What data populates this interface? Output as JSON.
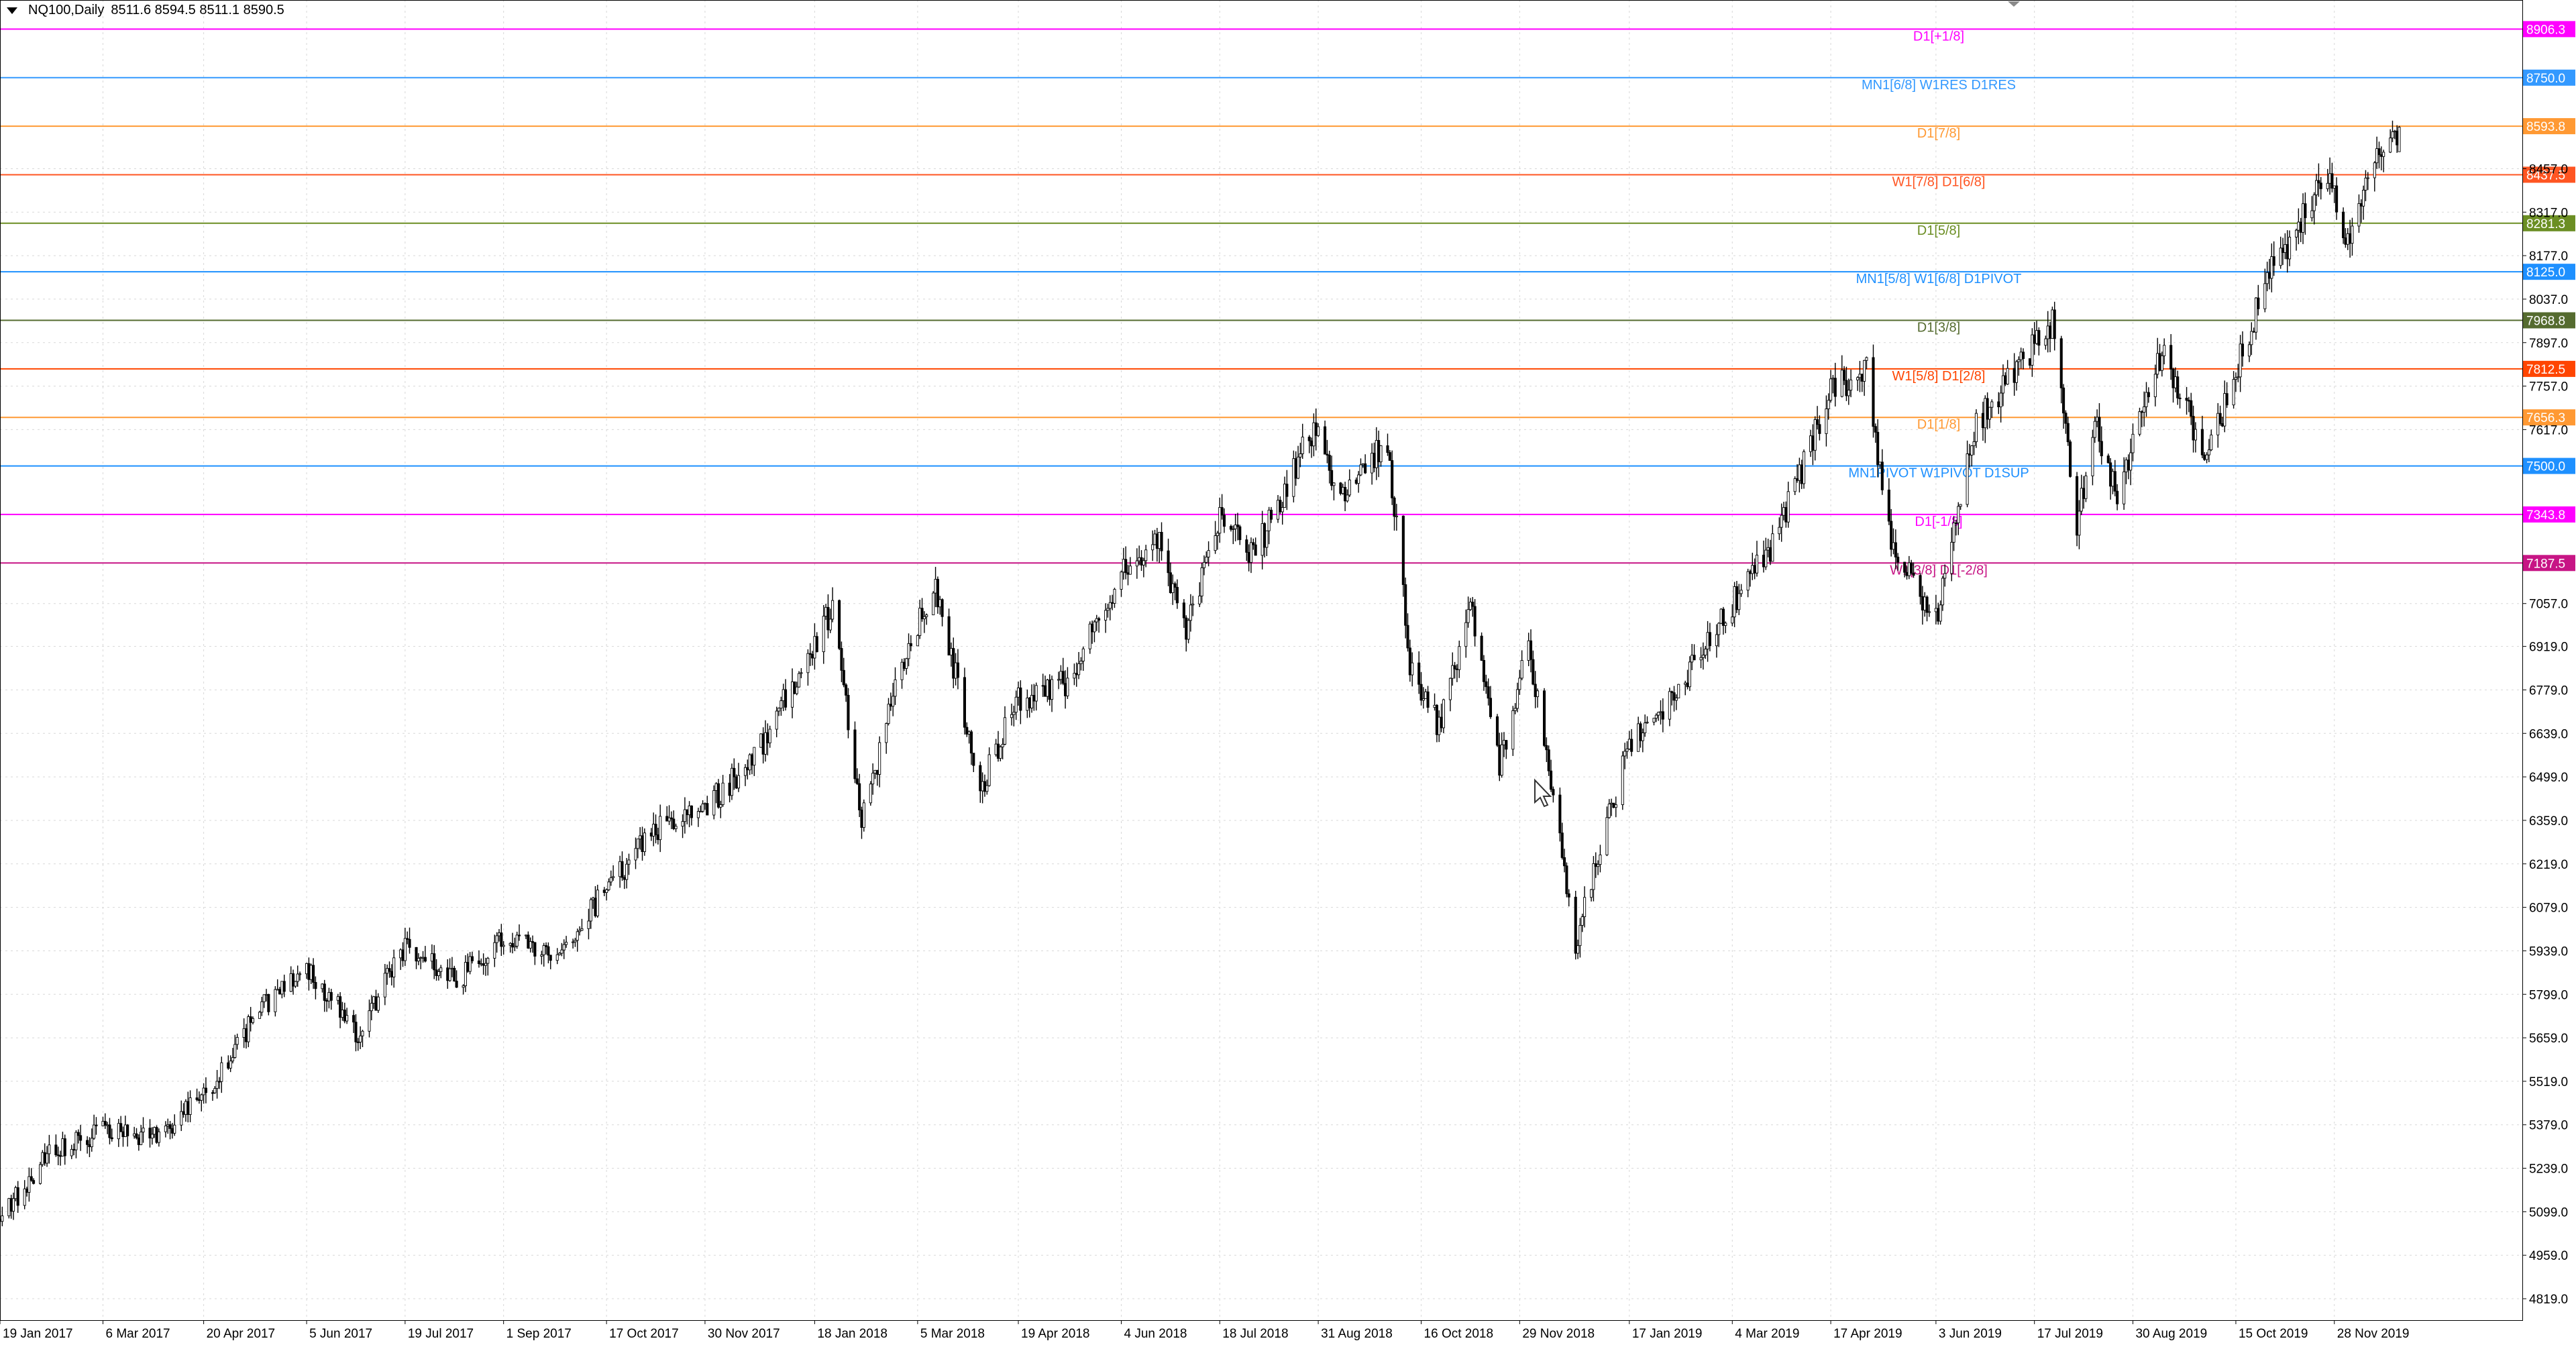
{
  "header": {
    "symbol": "NQ100,Daily",
    "ohlc": "8511.6 8594.5 8511.1 8590.5"
  },
  "colors": {
    "background": "#ffffff",
    "grid": "#d8d8d8",
    "candle": "#000000",
    "axis": "#000000"
  },
  "chart_data": {
    "type": "candlestick",
    "symbol": "NQ100",
    "timeframe": "Daily",
    "last_bar": {
      "open": 8511.6,
      "high": 8594.5,
      "low": 8511.1,
      "close": 8590.5
    },
    "ylim": [
      4750,
      9000
    ],
    "x_range": [
      "2017-01-19",
      "2020-02-20"
    ],
    "grid": true,
    "price_axis_labels": [
      "8906.3",
      "8750.0",
      "8593.8",
      "8457.0",
      "8437.5",
      "8317.0",
      "8281.3",
      "8177.0",
      "8125.0",
      "8037.0",
      "7968.8",
      "7897.0",
      "7812.5",
      "7757.0",
      "7617.0",
      "7656.3",
      "7500.0",
      "7343.8",
      "7187.5",
      "7057.0",
      "6919.0",
      "6779.0",
      "6639.0",
      "6499.0",
      "6359.0",
      "6219.0",
      "6079.0",
      "5939.0",
      "5799.0",
      "5659.0",
      "5519.0",
      "5379.0",
      "5239.0",
      "5099.0",
      "4959.0",
      "4819.0"
    ],
    "date_axis_labels": [
      "19 Jan 2017",
      "6 Mar 2017",
      "20 Apr 2017",
      "5 Jun 2017",
      "19 Jul 2017",
      "1 Sep 2017",
      "17 Oct 2017",
      "30 Nov 2017",
      "18 Jan 2018",
      "5 Mar 2018",
      "19 Apr 2018",
      "4 Jun 2018",
      "18 Jul 2018",
      "31 Aug 2018",
      "16 Oct 2018",
      "29 Nov 2018",
      "17 Jan 2019",
      "4 Mar 2019",
      "17 Apr 2019",
      "3 Jun 2019",
      "17 Jul 2019",
      "30 Aug 2019",
      "15 Oct 2019",
      "28 Nov 2019"
    ],
    "levels": [
      {
        "price": 8906.3,
        "label": "D1[+1/8]",
        "tag": "8906.3",
        "color": "#ff00ff"
      },
      {
        "price": 8750.0,
        "label": "MN1[6/8] W1RES D1RES",
        "tag": "8750.0",
        "color": "#3399ff"
      },
      {
        "price": 8593.8,
        "label": "D1[7/8]",
        "tag": "8593.8",
        "color": "#ff9933"
      },
      {
        "price": 8437.5,
        "label": "W1[7/8] D1[6/8]",
        "tag": "8437.5",
        "color": "#ff5522"
      },
      {
        "price": 8281.3,
        "label": "D1[5/8]",
        "tag": "8281.3",
        "color": "#6b8e23"
      },
      {
        "price": 8125.0,
        "label": "MN1[5/8] W1[6/8] D1PIVOT",
        "tag": "8125.0",
        "color": "#1e90ff"
      },
      {
        "price": 7968.8,
        "label": "D1[3/8]",
        "tag": "7968.8",
        "color": "#556b2f"
      },
      {
        "price": 7812.5,
        "label": "W1[5/8] D1[2/8]",
        "tag": "7812.5",
        "color": "#ff4500"
      },
      {
        "price": 7656.3,
        "label": "D1[1/8]",
        "tag": "7656.3",
        "color": "#ff9933"
      },
      {
        "price": 7500.0,
        "label": "MN1PIVOT W1PIVOT D1SUP",
        "tag": "7500.0",
        "color": "#1e90ff"
      },
      {
        "price": 7343.8,
        "label": "D1[-1/8]",
        "tag": "7343.8",
        "color": "#ff00ff"
      },
      {
        "price": 7187.5,
        "label": "W1[3/8] D1[-2/8]",
        "tag": "7187.5",
        "color": "#c71585"
      }
    ],
    "price_path": [
      [
        "2017-01-19",
        5075
      ],
      [
        "2017-02-10",
        5290
      ],
      [
        "2017-03-06",
        5360
      ],
      [
        "2017-03-28",
        5330
      ],
      [
        "2017-04-20",
        5470
      ],
      [
        "2017-05-16",
        5760
      ],
      [
        "2017-06-05",
        5890
      ],
      [
        "2017-06-28",
        5670
      ],
      [
        "2017-07-19",
        5960
      ],
      [
        "2017-08-11",
        5840
      ],
      [
        "2017-09-01",
        5990
      ],
      [
        "2017-09-25",
        5900
      ],
      [
        "2017-10-17",
        6140
      ],
      [
        "2017-11-08",
        6330
      ],
      [
        "2017-11-30",
        6400
      ],
      [
        "2017-12-22",
        6560
      ],
      [
        "2018-01-26",
        7040
      ],
      [
        "2018-02-08",
        6350
      ],
      [
        "2018-02-28",
        6920
      ],
      [
        "2018-03-13",
        7120
      ],
      [
        "2018-04-02",
        6460
      ],
      [
        "2018-04-19",
        6750
      ],
      [
        "2018-05-10",
        6800
      ],
      [
        "2018-06-04",
        7150
      ],
      [
        "2018-06-20",
        7270
      ],
      [
        "2018-07-03",
        6980
      ],
      [
        "2018-07-18",
        7320
      ],
      [
        "2018-08-02",
        7210
      ],
      [
        "2018-08-29",
        7620
      ],
      [
        "2018-09-11",
        7390
      ],
      [
        "2018-10-01",
        7590
      ],
      [
        "2018-10-11",
        6870
      ],
      [
        "2018-10-24",
        6660
      ],
      [
        "2018-11-07",
        7050
      ],
      [
        "2018-11-20",
        6540
      ],
      [
        "2018-12-03",
        6920
      ],
      [
        "2018-12-24",
        5960
      ],
      [
        "2019-01-03",
        6250
      ],
      [
        "2019-01-17",
        6600
      ],
      [
        "2019-02-08",
        6780
      ],
      [
        "2019-03-04",
        7060
      ],
      [
        "2019-03-22",
        7240
      ],
      [
        "2019-04-17",
        7740
      ],
      [
        "2019-05-03",
        7800
      ],
      [
        "2019-05-13",
        7280
      ],
      [
        "2019-06-03",
        7000
      ],
      [
        "2019-06-20",
        7610
      ],
      [
        "2019-07-01",
        7740
      ],
      [
        "2019-07-26",
        7960
      ],
      [
        "2019-08-05",
        7300
      ],
      [
        "2019-08-13",
        7650
      ],
      [
        "2019-08-23",
        7400
      ],
      [
        "2019-09-12",
        7860
      ],
      [
        "2019-10-02",
        7530
      ],
      [
        "2019-10-28",
        8080
      ],
      [
        "2019-11-15",
        8330
      ],
      [
        "2019-11-26",
        8420
      ],
      [
        "2019-12-03",
        8230
      ],
      [
        "2019-12-17",
        8490
      ],
      [
        "2019-12-27",
        8590
      ]
    ]
  }
}
